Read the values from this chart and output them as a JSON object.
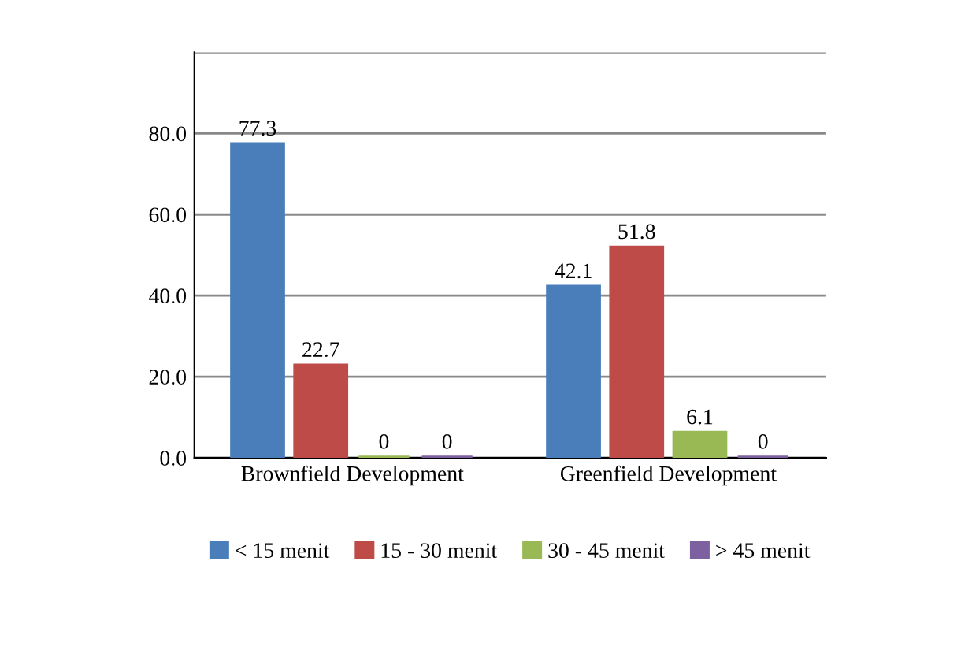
{
  "chart_data": {
    "type": "bar",
    "categories": [
      "Brownfield Development",
      "Greenfield Development"
    ],
    "series": [
      {
        "name": "< 15 menit",
        "color": "#4a7ebb",
        "values": [
          77.3,
          42.1
        ]
      },
      {
        "name": "15 - 30 menit",
        "color": "#be4b48",
        "values": [
          22.7,
          51.8
        ]
      },
      {
        "name": "30 - 45 menit",
        "color": "#98b954",
        "values": [
          0,
          6.1
        ]
      },
      {
        "name": "> 45 menit",
        "color": "#7d60a0",
        "values": [
          0,
          0
        ]
      }
    ],
    "ylim": [
      0,
      100
    ],
    "yticks": [
      {
        "value": 0,
        "label": "0.0"
      },
      {
        "value": 20,
        "label": "20.0"
      },
      {
        "value": 40,
        "label": "40.0"
      },
      {
        "value": 60,
        "label": "60.0"
      },
      {
        "value": 80,
        "label": "80.0"
      },
      {
        "value": 100,
        "label": null
      }
    ],
    "grid": "y",
    "legend": "bottom",
    "data_labels": true
  }
}
